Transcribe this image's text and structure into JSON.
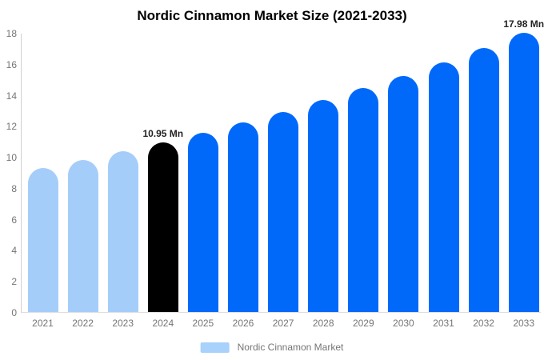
{
  "chart_data": {
    "type": "bar",
    "title": "Nordic Cinnamon Market Size (2021-2033)",
    "series_name": "Nordic Cinnamon Market",
    "unit": "Mn",
    "categories": [
      "2021",
      "2022",
      "2023",
      "2024",
      "2025",
      "2026",
      "2027",
      "2028",
      "2029",
      "2030",
      "2031",
      "2032",
      "2033"
    ],
    "values": [
      9.28,
      9.81,
      10.36,
      10.95,
      11.57,
      12.23,
      12.92,
      13.65,
      14.43,
      15.24,
      16.11,
      17.02,
      17.98
    ],
    "bar_colors": [
      "#a5cdfa",
      "#a5cdfa",
      "#a5cdfa",
      "#000000",
      "#0069fa",
      "#0069fa",
      "#0069fa",
      "#0069fa",
      "#0069fa",
      "#0069fa",
      "#0069fa",
      "#0069fa",
      "#0069fa"
    ],
    "annotations": [
      {
        "category": "2024",
        "label": "10.95 Mn"
      },
      {
        "category": "2033",
        "label": "17.98 Mn"
      }
    ],
    "xlabel": "",
    "ylabel": "",
    "ylim": [
      0,
      18
    ],
    "yticks": [
      0,
      2,
      4,
      6,
      8,
      10,
      12,
      14,
      16,
      18
    ],
    "grid": false,
    "legend_position": "bottom"
  },
  "colors": {
    "historical_bar": "#a5cdfa",
    "highlight_bar": "#000000",
    "forecast_bar": "#0069fa",
    "axis_text": "#757575",
    "annotation_text": "#222222",
    "axis_line": "#cfcfcf",
    "background": "#ffffff",
    "legend_swatch": "#a8d1fb"
  },
  "legend": {
    "label": "Nordic Cinnamon Market"
  }
}
